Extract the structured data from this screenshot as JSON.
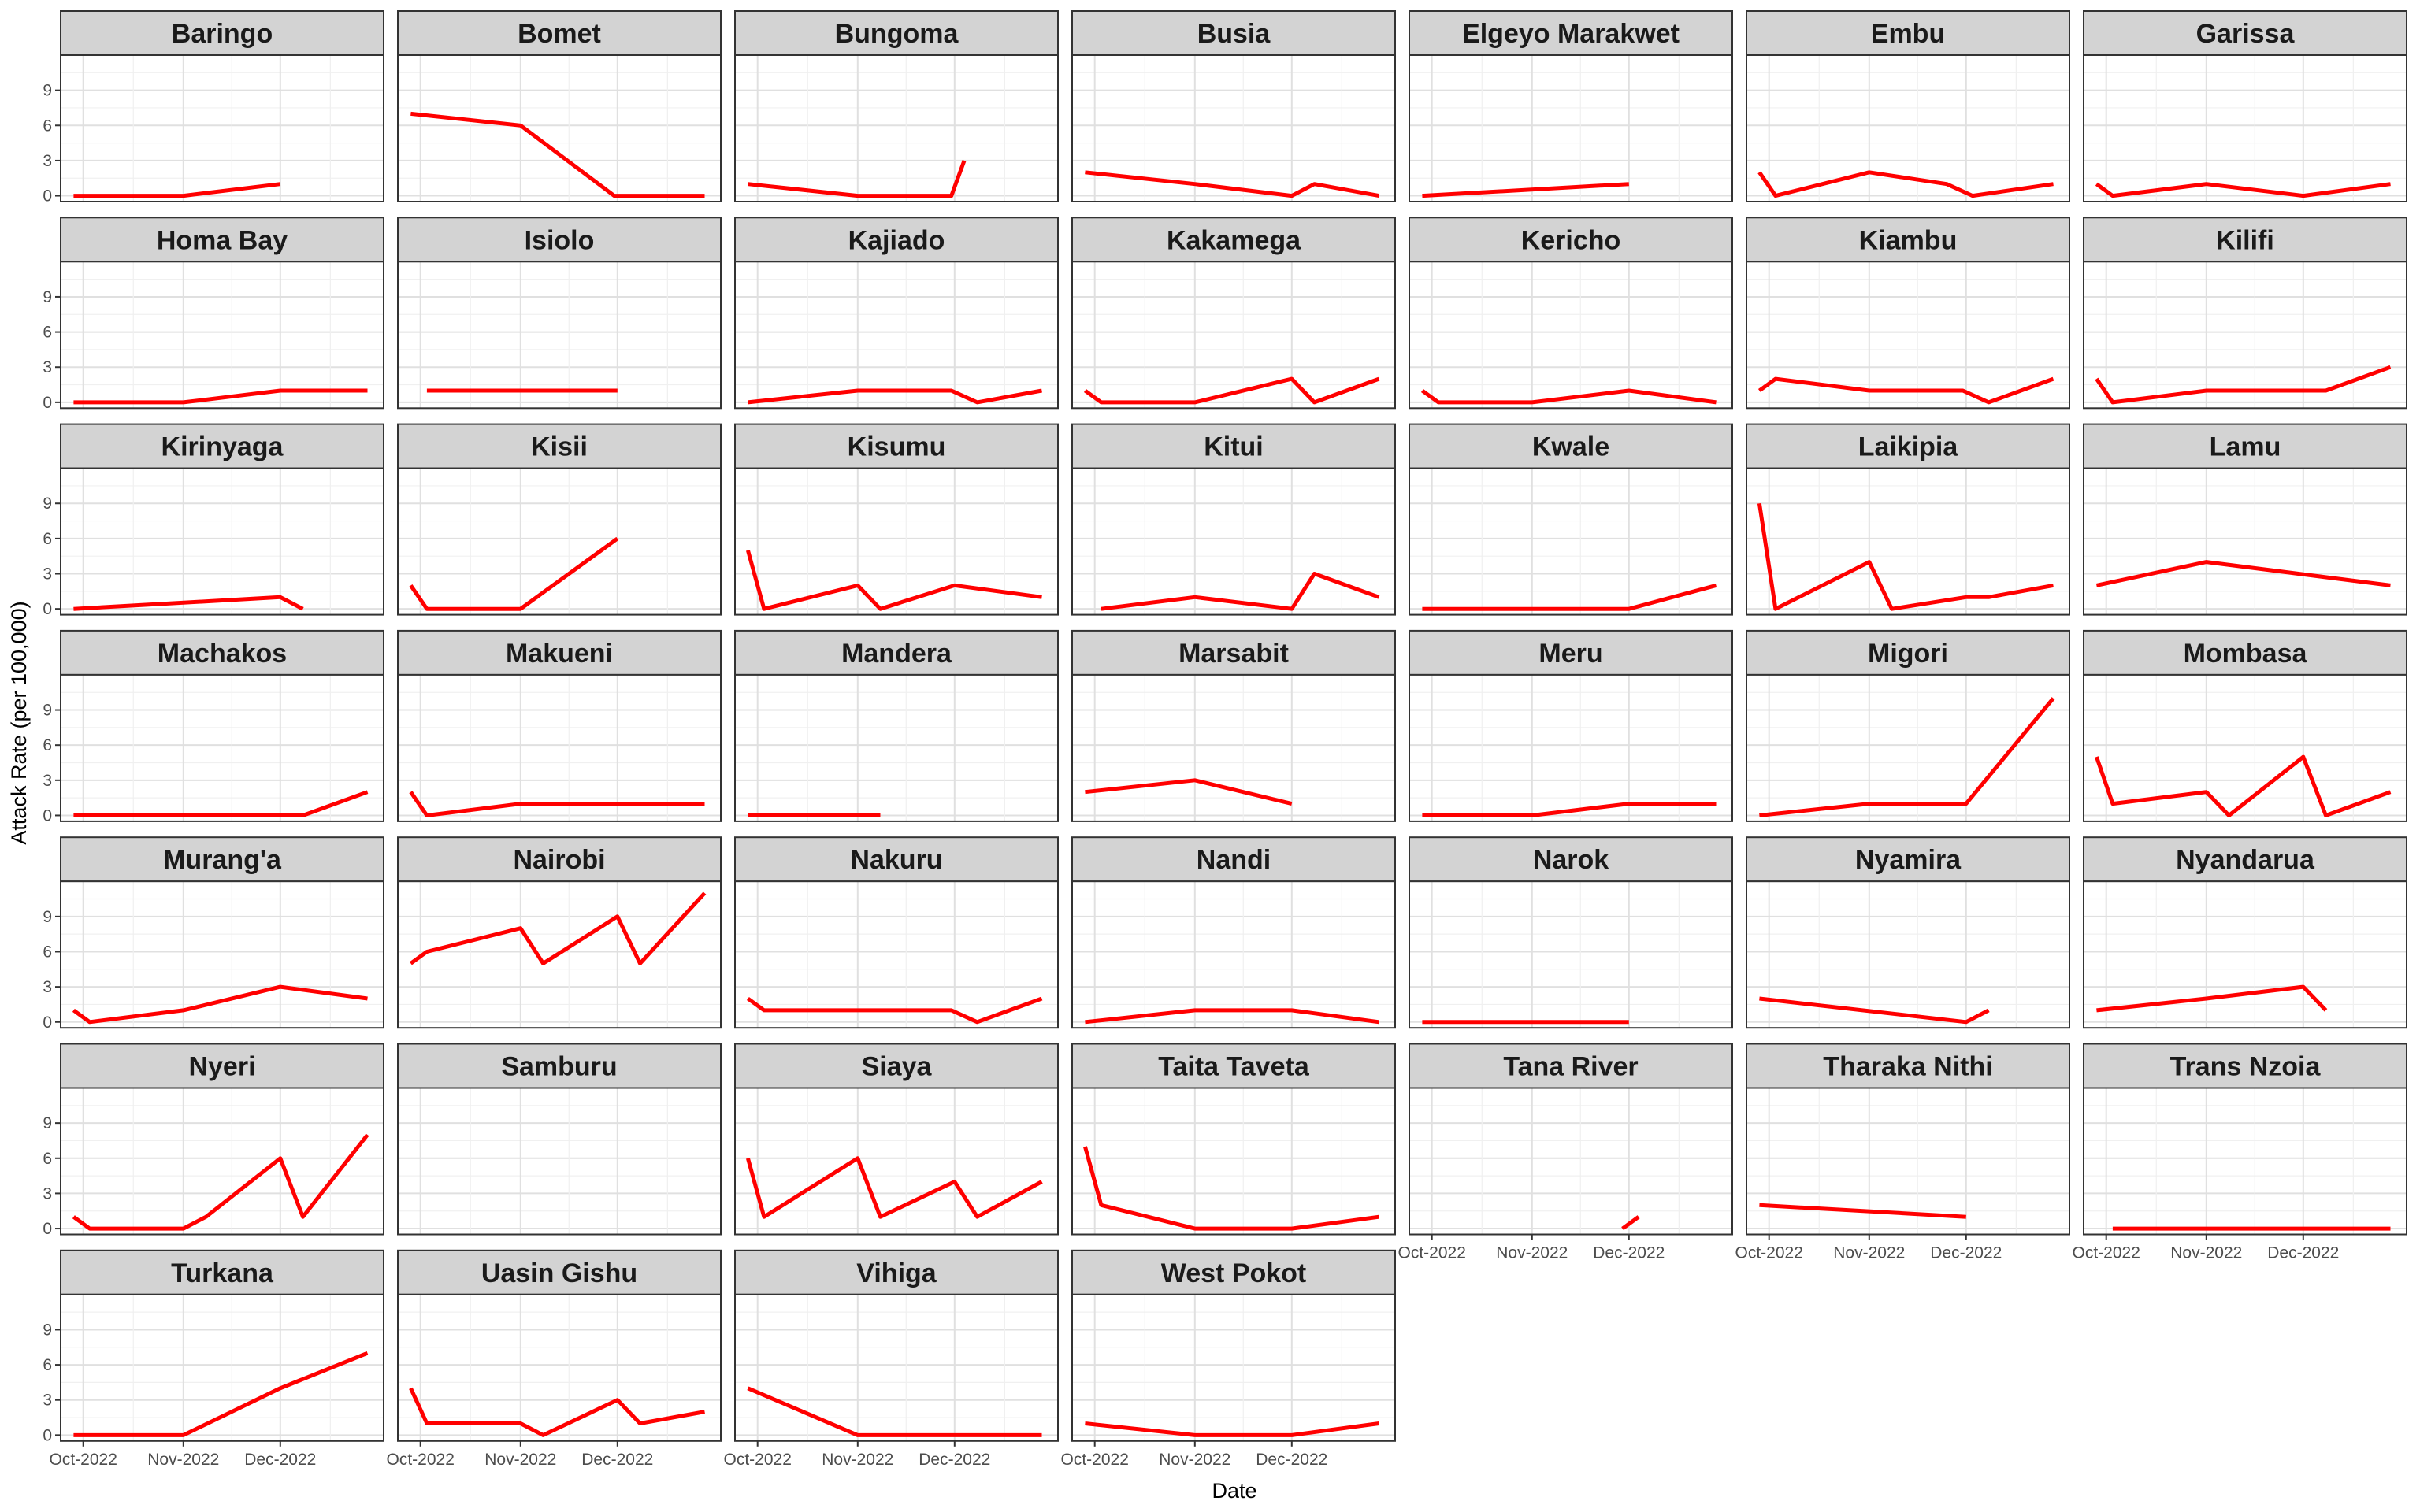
{
  "chart_data": {
    "type": "line",
    "facet_layout": "wrap",
    "xlabel": "Date",
    "ylabel": "Attack Rate (per 100,000)",
    "y_ticks": [
      0,
      3,
      6,
      9
    ],
    "ylim": [
      -0.5,
      12
    ],
    "x_ticks": [
      "Oct-2022",
      "Nov-2022",
      "Dec-2022"
    ],
    "x_tick_dates": [
      "2022-10-01",
      "2022-11-01",
      "2022-12-01"
    ],
    "xlim": [
      "2022-09-24",
      "2023-01-02"
    ],
    "line_color": "#ff0000",
    "strip_fill": "#d3d3d3",
    "grid": true,
    "panels": [
      {
        "name": "Baringo",
        "points": [
          [
            "2022-09-28",
            0
          ],
          [
            "2022-11-01",
            0
          ],
          [
            "2022-12-01",
            1
          ]
        ]
      },
      {
        "name": "Bomet",
        "points": [
          [
            "2022-09-28",
            7
          ],
          [
            "2022-11-01",
            6
          ],
          [
            "2022-11-30",
            0
          ],
          [
            "2022-12-28",
            0
          ]
        ]
      },
      {
        "name": "Bungoma",
        "points": [
          [
            "2022-09-28",
            1
          ],
          [
            "2022-11-01",
            0
          ],
          [
            "2022-11-30",
            0
          ],
          [
            "2022-12-04",
            3
          ]
        ]
      },
      {
        "name": "Busia",
        "points": [
          [
            "2022-09-28",
            2
          ],
          [
            "2022-11-01",
            1
          ],
          [
            "2022-12-01",
            0
          ],
          [
            "2022-12-08",
            1
          ],
          [
            "2022-12-28",
            0
          ]
        ]
      },
      {
        "name": "Elgeyo Marakwet",
        "points": [
          [
            "2022-09-28",
            0
          ],
          [
            "2022-12-01",
            1
          ]
        ]
      },
      {
        "name": "Embu",
        "points": [
          [
            "2022-09-28",
            2
          ],
          [
            "2022-10-03",
            0
          ],
          [
            "2022-11-01",
            2
          ],
          [
            "2022-11-25",
            1
          ],
          [
            "2022-12-03",
            0
          ],
          [
            "2022-12-28",
            1
          ]
        ]
      },
      {
        "name": "Garissa",
        "points": [
          [
            "2022-09-28",
            1
          ],
          [
            "2022-10-03",
            0
          ],
          [
            "2022-11-01",
            1
          ],
          [
            "2022-12-01",
            0
          ],
          [
            "2022-12-28",
            1
          ]
        ]
      },
      {
        "name": "Homa Bay",
        "points": [
          [
            "2022-09-28",
            0
          ],
          [
            "2022-11-01",
            0
          ],
          [
            "2022-12-01",
            1
          ],
          [
            "2022-12-28",
            1
          ]
        ]
      },
      {
        "name": "Isiolo",
        "points": [
          [
            "2022-10-03",
            1
          ],
          [
            "2022-12-01",
            1
          ]
        ]
      },
      {
        "name": "Kajiado",
        "points": [
          [
            "2022-09-28",
            0
          ],
          [
            "2022-11-01",
            1
          ],
          [
            "2022-11-30",
            1
          ],
          [
            "2022-12-08",
            0
          ],
          [
            "2022-12-28",
            1
          ]
        ]
      },
      {
        "name": "Kakamega",
        "points": [
          [
            "2022-09-28",
            1
          ],
          [
            "2022-10-03",
            0
          ],
          [
            "2022-11-01",
            0
          ],
          [
            "2022-12-01",
            2
          ],
          [
            "2022-12-08",
            0
          ],
          [
            "2022-12-28",
            2
          ]
        ]
      },
      {
        "name": "Kericho",
        "points": [
          [
            "2022-09-28",
            1
          ],
          [
            "2022-10-03",
            0
          ],
          [
            "2022-11-01",
            0
          ],
          [
            "2022-12-01",
            1
          ],
          [
            "2022-12-28",
            0
          ]
        ]
      },
      {
        "name": "Kiambu",
        "points": [
          [
            "2022-09-28",
            1
          ],
          [
            "2022-10-03",
            2
          ],
          [
            "2022-11-01",
            1
          ],
          [
            "2022-11-30",
            1
          ],
          [
            "2022-12-08",
            0
          ],
          [
            "2022-12-28",
            2
          ]
        ]
      },
      {
        "name": "Kilifi",
        "points": [
          [
            "2022-09-28",
            2
          ],
          [
            "2022-10-03",
            0
          ],
          [
            "2022-11-01",
            1
          ],
          [
            "2022-12-08",
            1
          ],
          [
            "2022-12-28",
            3
          ]
        ]
      },
      {
        "name": "Kirinyaga",
        "points": [
          [
            "2022-09-28",
            0
          ],
          [
            "2022-12-01",
            1
          ],
          [
            "2022-12-08",
            0
          ]
        ]
      },
      {
        "name": "Kisii",
        "points": [
          [
            "2022-09-28",
            2
          ],
          [
            "2022-10-03",
            0
          ],
          [
            "2022-11-01",
            0
          ],
          [
            "2022-12-01",
            6
          ]
        ]
      },
      {
        "name": "Kisumu",
        "points": [
          [
            "2022-09-28",
            5
          ],
          [
            "2022-10-03",
            0
          ],
          [
            "2022-11-01",
            2
          ],
          [
            "2022-11-08",
            0
          ],
          [
            "2022-12-01",
            2
          ],
          [
            "2022-12-28",
            1
          ]
        ]
      },
      {
        "name": "Kitui",
        "points": [
          [
            "2022-10-03",
            0
          ],
          [
            "2022-11-01",
            1
          ],
          [
            "2022-12-01",
            0
          ],
          [
            "2022-12-08",
            3
          ],
          [
            "2022-12-28",
            1
          ]
        ]
      },
      {
        "name": "Kwale",
        "points": [
          [
            "2022-09-28",
            0
          ],
          [
            "2022-12-01",
            0
          ],
          [
            "2022-12-28",
            2
          ]
        ]
      },
      {
        "name": "Laikipia",
        "points": [
          [
            "2022-09-28",
            9
          ],
          [
            "2022-10-03",
            0
          ],
          [
            "2022-11-01",
            4
          ],
          [
            "2022-11-08",
            0
          ],
          [
            "2022-12-01",
            1
          ],
          [
            "2022-12-08",
            1
          ],
          [
            "2022-12-28",
            2
          ]
        ]
      },
      {
        "name": "Lamu",
        "points": [
          [
            "2022-09-28",
            2
          ],
          [
            "2022-11-01",
            4
          ],
          [
            "2022-12-28",
            2
          ]
        ]
      },
      {
        "name": "Machakos",
        "points": [
          [
            "2022-09-28",
            0
          ],
          [
            "2022-12-08",
            0
          ],
          [
            "2022-12-28",
            2
          ]
        ]
      },
      {
        "name": "Makueni",
        "points": [
          [
            "2022-09-28",
            2
          ],
          [
            "2022-10-03",
            0
          ],
          [
            "2022-11-01",
            1
          ],
          [
            "2022-12-28",
            1
          ]
        ]
      },
      {
        "name": "Mandera",
        "points": [
          [
            "2022-09-28",
            0
          ],
          [
            "2022-11-08",
            0
          ]
        ]
      },
      {
        "name": "Marsabit",
        "points": [
          [
            "2022-09-28",
            2
          ],
          [
            "2022-11-01",
            3
          ],
          [
            "2022-12-01",
            1
          ]
        ]
      },
      {
        "name": "Meru",
        "points": [
          [
            "2022-09-28",
            0
          ],
          [
            "2022-11-01",
            0
          ],
          [
            "2022-12-01",
            1
          ],
          [
            "2022-12-28",
            1
          ]
        ]
      },
      {
        "name": "Migori",
        "points": [
          [
            "2022-09-28",
            0
          ],
          [
            "2022-11-01",
            1
          ],
          [
            "2022-12-01",
            1
          ],
          [
            "2022-12-28",
            10
          ]
        ]
      },
      {
        "name": "Mombasa",
        "points": [
          [
            "2022-09-28",
            5
          ],
          [
            "2022-10-03",
            1
          ],
          [
            "2022-11-01",
            2
          ],
          [
            "2022-11-08",
            0
          ],
          [
            "2022-12-01",
            5
          ],
          [
            "2022-12-08",
            0
          ],
          [
            "2022-12-28",
            2
          ]
        ]
      },
      {
        "name": "Murang'a",
        "points": [
          [
            "2022-09-28",
            1
          ],
          [
            "2022-10-03",
            0
          ],
          [
            "2022-11-01",
            1
          ],
          [
            "2022-12-01",
            3
          ],
          [
            "2022-12-28",
            2
          ]
        ]
      },
      {
        "name": "Nairobi",
        "points": [
          [
            "2022-09-28",
            5
          ],
          [
            "2022-10-03",
            6
          ],
          [
            "2022-11-01",
            8
          ],
          [
            "2022-11-08",
            5
          ],
          [
            "2022-12-01",
            9
          ],
          [
            "2022-12-08",
            5
          ],
          [
            "2022-12-28",
            11
          ]
        ]
      },
      {
        "name": "Nakuru",
        "points": [
          [
            "2022-09-28",
            2
          ],
          [
            "2022-10-03",
            1
          ],
          [
            "2022-11-30",
            1
          ],
          [
            "2022-12-08",
            0
          ],
          [
            "2022-12-28",
            2
          ]
        ]
      },
      {
        "name": "Nandi",
        "points": [
          [
            "2022-09-28",
            0
          ],
          [
            "2022-11-01",
            1
          ],
          [
            "2022-12-01",
            1
          ],
          [
            "2022-12-28",
            0
          ]
        ]
      },
      {
        "name": "Narok",
        "points": [
          [
            "2022-09-28",
            0
          ],
          [
            "2022-12-01",
            0
          ]
        ]
      },
      {
        "name": "Nyamira",
        "points": [
          [
            "2022-09-28",
            2
          ],
          [
            "2022-12-01",
            0
          ],
          [
            "2022-12-08",
            1
          ]
        ]
      },
      {
        "name": "Nyandarua",
        "points": [
          [
            "2022-09-28",
            1
          ],
          [
            "2022-11-01",
            2
          ],
          [
            "2022-12-01",
            3
          ],
          [
            "2022-12-08",
            1
          ]
        ]
      },
      {
        "name": "Nyeri",
        "points": [
          [
            "2022-09-28",
            1
          ],
          [
            "2022-10-03",
            0
          ],
          [
            "2022-11-01",
            0
          ],
          [
            "2022-11-08",
            1
          ],
          [
            "2022-12-01",
            6
          ],
          [
            "2022-12-08",
            1
          ],
          [
            "2022-12-28",
            8
          ]
        ]
      },
      {
        "name": "Samburu",
        "points": []
      },
      {
        "name": "Siaya",
        "points": [
          [
            "2022-09-28",
            6
          ],
          [
            "2022-10-03",
            1
          ],
          [
            "2022-11-01",
            6
          ],
          [
            "2022-11-08",
            1
          ],
          [
            "2022-12-01",
            4
          ],
          [
            "2022-12-08",
            1
          ],
          [
            "2022-12-28",
            4
          ]
        ]
      },
      {
        "name": "Taita Taveta",
        "points": [
          [
            "2022-09-28",
            7
          ],
          [
            "2022-10-03",
            2
          ],
          [
            "2022-11-01",
            0
          ],
          [
            "2022-12-01",
            0
          ],
          [
            "2022-12-28",
            1
          ]
        ]
      },
      {
        "name": "Tana River",
        "points": [
          [
            "2022-11-29",
            0
          ],
          [
            "2022-12-04",
            1
          ]
        ]
      },
      {
        "name": "Tharaka Nithi",
        "points": [
          [
            "2022-09-28",
            2
          ],
          [
            "2022-12-01",
            1
          ]
        ]
      },
      {
        "name": "Trans Nzoia",
        "points": [
          [
            "2022-10-03",
            0
          ],
          [
            "2022-12-28",
            0
          ]
        ]
      },
      {
        "name": "Turkana",
        "points": [
          [
            "2022-09-28",
            0
          ],
          [
            "2022-11-01",
            0
          ],
          [
            "2022-12-01",
            4
          ],
          [
            "2022-12-28",
            7
          ]
        ]
      },
      {
        "name": "Uasin Gishu",
        "points": [
          [
            "2022-09-28",
            4
          ],
          [
            "2022-10-03",
            1
          ],
          [
            "2022-11-01",
            1
          ],
          [
            "2022-11-08",
            0
          ],
          [
            "2022-12-01",
            3
          ],
          [
            "2022-12-08",
            1
          ],
          [
            "2022-12-28",
            2
          ]
        ]
      },
      {
        "name": "Vihiga",
        "points": [
          [
            "2022-09-28",
            4
          ],
          [
            "2022-11-01",
            0
          ],
          [
            "2022-12-28",
            0
          ]
        ]
      },
      {
        "name": "West Pokot",
        "points": [
          [
            "2022-09-28",
            1
          ],
          [
            "2022-11-01",
            0
          ],
          [
            "2022-12-01",
            0
          ],
          [
            "2022-12-28",
            1
          ]
        ]
      }
    ]
  }
}
